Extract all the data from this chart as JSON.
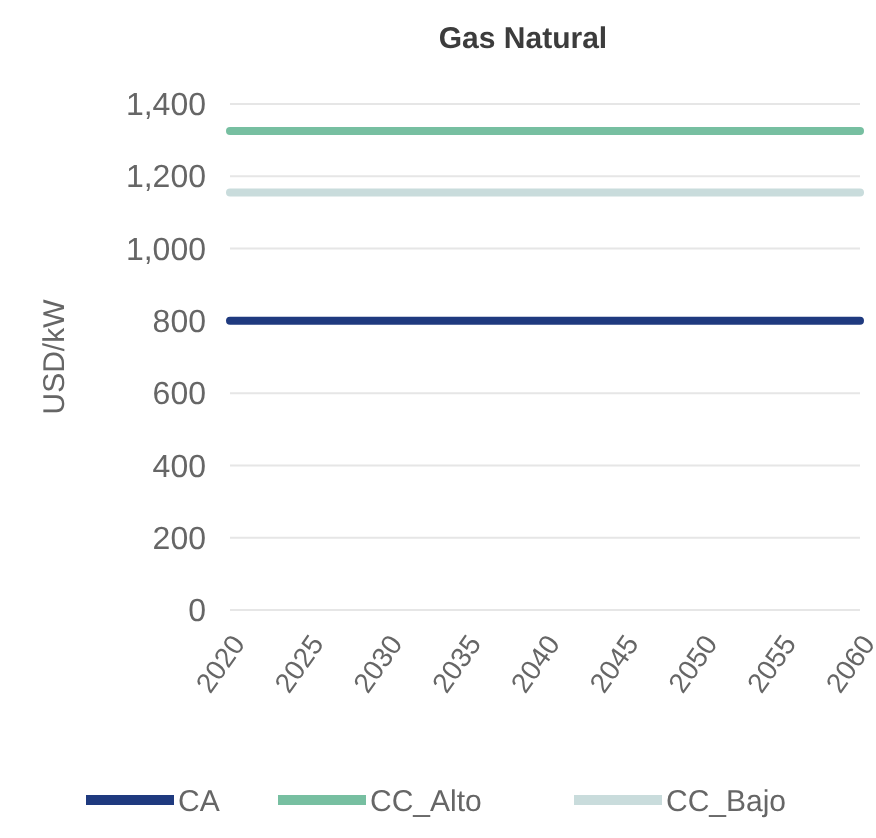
{
  "chart_data": {
    "type": "line",
    "title": "Gas Natural",
    "ylabel": "USD/kW",
    "categories": [
      "2020",
      "2025",
      "2030",
      "2035",
      "2040",
      "2045",
      "2050",
      "2055",
      "2060"
    ],
    "series": [
      {
        "name": "CA",
        "color": "#1f3a7f",
        "values": [
          800,
          800,
          800,
          800,
          800,
          800,
          800,
          800,
          800
        ]
      },
      {
        "name": "CC_Alto",
        "color": "#77bfa1",
        "values": [
          1325,
          1325,
          1325,
          1325,
          1325,
          1325,
          1325,
          1325,
          1325
        ]
      },
      {
        "name": "CC_Bajo",
        "color": "#c9dcdc",
        "values": [
          1155,
          1155,
          1155,
          1155,
          1155,
          1155,
          1155,
          1155,
          1155
        ]
      }
    ],
    "ylim": [
      0,
      1400
    ],
    "yticks": [
      0,
      200,
      400,
      600,
      800,
      {
        "value": 1000,
        "label": "1,000"
      },
      {
        "value": 1200,
        "label": "1,200"
      },
      {
        "value": 1400,
        "label": "1,400"
      }
    ],
    "grid": "y",
    "legend": "bottom",
    "marker": "none",
    "line_style": "solid"
  }
}
